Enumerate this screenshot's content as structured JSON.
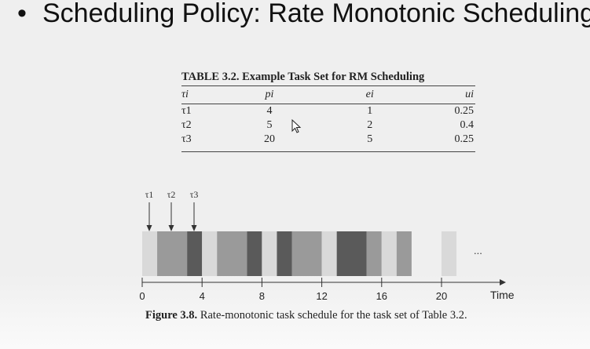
{
  "slide": {
    "bullet": "•",
    "title": "Scheduling Policy: Rate Monotonic Scheduling"
  },
  "table": {
    "label": "TABLE 3.2.",
    "title": "Example Task Set for RM Scheduling",
    "headers": [
      "τi",
      "pi",
      "ei",
      "ui"
    ],
    "rows": [
      [
        "τ1",
        "4",
        "1",
        "0.25"
      ],
      [
        "τ2",
        "5",
        "2",
        "0.4"
      ],
      [
        "τ3",
        "20",
        "5",
        "0.25"
      ]
    ]
  },
  "figure": {
    "label": "Figure 3.8.",
    "caption": "Rate-monotonic task schedule for the task set of Table 3.2.",
    "arrival_labels": [
      "τ1",
      "τ2",
      "τ3"
    ],
    "arrival_times": [
      0,
      1,
      2
    ],
    "x_ticks": [
      0,
      4,
      8,
      12,
      16,
      20
    ],
    "x_label": "Time",
    "x_range": [
      0,
      24
    ],
    "ellipsis": "...",
    "task_colors": {
      "τ1": "#d9d9d9",
      "τ2": "#9a9a9a",
      "τ3": "#5a5a5a"
    },
    "segments": [
      {
        "task": "τ1",
        "start": 0,
        "end": 1
      },
      {
        "task": "τ2",
        "start": 1,
        "end": 3
      },
      {
        "task": "τ3",
        "start": 3,
        "end": 4
      },
      {
        "task": "τ1",
        "start": 4,
        "end": 5
      },
      {
        "task": "τ2",
        "start": 5,
        "end": 7
      },
      {
        "task": "τ3",
        "start": 7,
        "end": 8
      },
      {
        "task": "τ1",
        "start": 8,
        "end": 9
      },
      {
        "task": "τ3",
        "start": 9,
        "end": 10
      },
      {
        "task": "τ2",
        "start": 10,
        "end": 12
      },
      {
        "task": "τ1",
        "start": 12,
        "end": 13
      },
      {
        "task": "τ3",
        "start": 13,
        "end": 15
      },
      {
        "task": "τ2",
        "start": 15,
        "end": 16
      },
      {
        "task": "τ1",
        "start": 16,
        "end": 17
      },
      {
        "task": "τ2",
        "start": 17,
        "end": 18
      },
      {
        "task": "τ1",
        "start": 20,
        "end": 21
      }
    ]
  }
}
